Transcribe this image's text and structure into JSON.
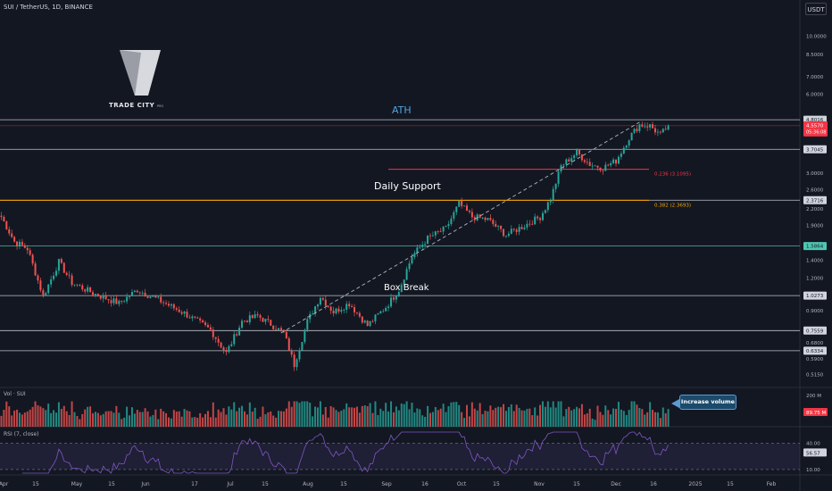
{
  "header": {
    "symbol_line": "SUI / TetherUS, 1D, BINANCE",
    "currency": "USDT"
  },
  "logo": {
    "text": "TRADE CITY",
    "sub": "PRO"
  },
  "chart_data": {
    "type": "candlestick",
    "price_axis": {
      "scale": "log",
      "range": [
        0.47,
        12.3
      ],
      "ticks": [
        "10.0000",
        "8.5000",
        "7.0000",
        "6.0000",
        "3.0000",
        "2.6000",
        "2.2000",
        "1.9000",
        "1.4000",
        "1.2000",
        "0.9000",
        "0.6800",
        "0.5900",
        "0.5150"
      ]
    },
    "time_axis": {
      "labels": [
        "Apr",
        "15",
        "May",
        "15",
        "Jun",
        "17",
        "Jul",
        "15",
        "Aug",
        "15",
        "Sep",
        "16",
        "Oct",
        "15",
        "Nov",
        "15",
        "Dec",
        "16",
        "2025",
        "15",
        "Feb"
      ]
    },
    "levels": [
      {
        "label": "4.8016",
        "value": 4.8016,
        "color": "#d1d4dc",
        "badge": "light"
      },
      {
        "label": "3.7045",
        "value": 3.7045,
        "color": "#d1d4dc",
        "badge": "light"
      },
      {
        "label": "2.3716",
        "value": 2.3716,
        "color": "#d1d4dc",
        "badge": "light"
      },
      {
        "label": "1.5864",
        "value": 1.5864,
        "color": "#4fc6b3",
        "badge": "teal"
      },
      {
        "label": "1.0273",
        "value": 1.0273,
        "color": "#d1d4dc",
        "badge": "light"
      },
      {
        "label": "0.7559",
        "value": 0.7559,
        "color": "#d1d4dc",
        "badge": "light"
      },
      {
        "label": "0.6334",
        "value": 0.6334,
        "color": "#d1d4dc",
        "badge": "light"
      }
    ],
    "fib_levels": [
      {
        "label": "0.236 (3.1095)",
        "value": 3.1095,
        "color": "#f23645"
      },
      {
        "label": "0.382 (2.3693)",
        "value": 2.3693,
        "color": "#f7a600"
      }
    ],
    "current_price": {
      "value": 4.557,
      "label": "4.5570",
      "countdown": "05:36:08"
    },
    "annotations": [
      {
        "text": "ATH",
        "color": "#4fa3e0"
      },
      {
        "text": "Daily Support",
        "color": "#ffffff"
      },
      {
        "text": "Box Break",
        "color": "#ffffff"
      },
      {
        "text": "Increase volume",
        "color": "#ffffff"
      }
    ],
    "volume": {
      "label": "Vol · SUI",
      "axis_top": "200 M",
      "last": "89.75 M"
    },
    "rsi": {
      "label": "RSI (7, close)",
      "period": 7,
      "upper": 70,
      "lower": 30,
      "last": "56.57",
      "ticks": [
        "40.00",
        "10.00"
      ]
    },
    "anchors": [
      {
        "day": 0,
        "price": 2.05
      },
      {
        "day": 5,
        "price": 1.65
      },
      {
        "day": 10,
        "price": 1.55
      },
      {
        "day": 16,
        "price": 1.02
      },
      {
        "day": 22,
        "price": 1.38
      },
      {
        "day": 27,
        "price": 1.15
      },
      {
        "day": 35,
        "price": 1.05
      },
      {
        "day": 45,
        "price": 0.96
      },
      {
        "day": 52,
        "price": 1.08
      },
      {
        "day": 60,
        "price": 0.99
      },
      {
        "day": 70,
        "price": 0.88
      },
      {
        "day": 80,
        "price": 0.76
      },
      {
        "day": 86,
        "price": 0.62
      },
      {
        "day": 92,
        "price": 0.82
      },
      {
        "day": 98,
        "price": 0.86
      },
      {
        "day": 103,
        "price": 0.8
      },
      {
        "day": 108,
        "price": 0.74
      },
      {
        "day": 112,
        "price": 0.56
      },
      {
        "day": 117,
        "price": 0.82
      },
      {
        "day": 122,
        "price": 1.02
      },
      {
        "day": 127,
        "price": 0.89
      },
      {
        "day": 133,
        "price": 0.96
      },
      {
        "day": 140,
        "price": 0.79
      },
      {
        "day": 147,
        "price": 0.93
      },
      {
        "day": 152,
        "price": 1.08
      },
      {
        "day": 157,
        "price": 1.45
      },
      {
        "day": 163,
        "price": 1.7
      },
      {
        "day": 170,
        "price": 1.85
      },
      {
        "day": 175,
        "price": 2.3
      },
      {
        "day": 180,
        "price": 2.05
      },
      {
        "day": 186,
        "price": 2.0
      },
      {
        "day": 193,
        "price": 1.75
      },
      {
        "day": 200,
        "price": 1.9
      },
      {
        "day": 206,
        "price": 2.05
      },
      {
        "day": 210,
        "price": 2.4
      },
      {
        "day": 214,
        "price": 3.2
      },
      {
        "day": 220,
        "price": 3.6
      },
      {
        "day": 225,
        "price": 3.25
      },
      {
        "day": 230,
        "price": 3.15
      },
      {
        "day": 235,
        "price": 3.35
      },
      {
        "day": 240,
        "price": 4.1
      },
      {
        "day": 244,
        "price": 4.6
      },
      {
        "day": 248,
        "price": 4.55
      },
      {
        "day": 252,
        "price": 4.2
      },
      {
        "day": 255,
        "price": 4.557
      }
    ]
  }
}
